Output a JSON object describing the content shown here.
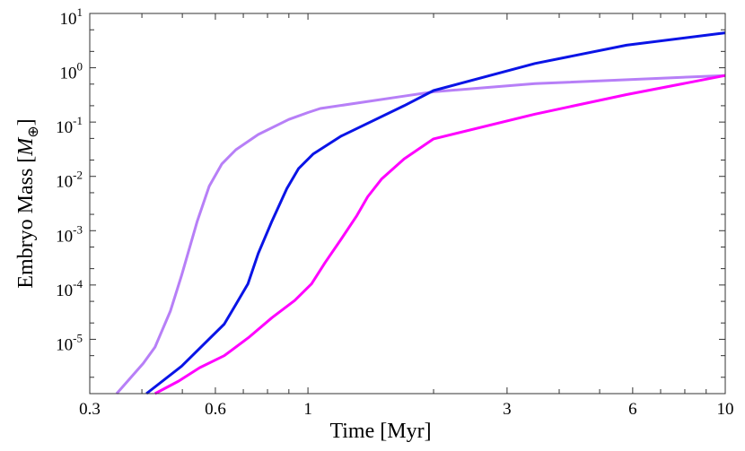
{
  "chart_data": {
    "type": "line",
    "title": "",
    "xlabel": "Time [Myr]",
    "ylabel": {
      "prefix": "Embryo Mass [",
      "symbol": "M",
      "subscript": "⊕",
      "suffix": "]"
    },
    "xscale": "log",
    "yscale": "log",
    "xlim": [
      0.3,
      10
    ],
    "ylim": [
      1e-06,
      10
    ],
    "xticks": [
      0.3,
      0.6,
      1,
      3,
      6,
      10
    ],
    "xtick_labels": [
      "0.3",
      "0.6",
      "1",
      "3",
      "6",
      "10"
    ],
    "yticks": [
      -5,
      -4,
      -3,
      -2,
      -1,
      0,
      1
    ],
    "ytick_labels": [
      {
        "base": "10",
        "exp": "-5"
      },
      {
        "base": "10",
        "exp": "-4"
      },
      {
        "base": "10",
        "exp": "-3"
      },
      {
        "base": "10",
        "exp": "-2"
      },
      {
        "base": "10",
        "exp": "-1"
      },
      {
        "base": "10",
        "exp": "0"
      },
      {
        "base": "10",
        "exp": "1"
      }
    ],
    "grid": false,
    "legend": "none",
    "series": [
      {
        "color": "#b77ff7",
        "x": [
          0.348,
          0.403,
          0.43,
          0.468,
          0.498,
          0.543,
          0.58,
          0.622,
          0.672,
          0.76,
          0.9,
          1.0,
          1.07,
          1.7,
          2.0,
          3.5,
          10
        ],
        "y": [
          1e-06,
          3.6e-06,
          7.2e-06,
          3.3e-05,
          0.00015,
          0.0015,
          0.0066,
          0.017,
          0.031,
          0.059,
          0.112,
          0.15,
          0.178,
          0.3,
          0.36,
          0.51,
          0.72
        ]
      },
      {
        "color": "#0a14e6",
        "x": [
          0.41,
          0.498,
          0.63,
          0.672,
          0.718,
          0.76,
          0.82,
          0.89,
          0.95,
          1.03,
          1.2,
          1.7,
          2.0,
          3.5,
          5.8,
          10
        ],
        "y": [
          1e-06,
          3.2e-06,
          1.9e-05,
          4.4e-05,
          0.000105,
          0.00038,
          0.0015,
          0.006,
          0.014,
          0.026,
          0.055,
          0.2,
          0.38,
          1.2,
          2.6,
          4.4
        ]
      },
      {
        "color": "#ff00ff",
        "x": [
          0.43,
          0.49,
          0.55,
          0.63,
          0.72,
          0.82,
          0.93,
          1.02,
          1.1,
          1.2,
          1.31,
          1.39,
          1.5,
          1.7,
          2.0,
          3.5,
          5.8,
          10
        ],
        "y": [
          1e-06,
          1.7e-06,
          3e-06,
          5e-06,
          1.07e-05,
          2.5e-05,
          5.2e-05,
          0.000105,
          0.00026,
          0.00069,
          0.0019,
          0.0042,
          0.0089,
          0.021,
          0.049,
          0.14,
          0.32,
          0.72
        ]
      }
    ]
  }
}
